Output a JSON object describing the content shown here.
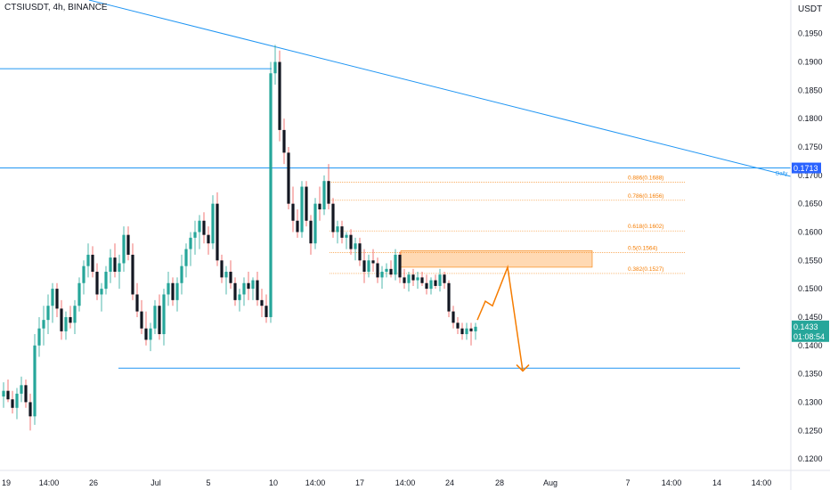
{
  "header": {
    "title": "CTSIUSDT, 4h, BINANCE",
    "currency": "USDT"
  },
  "colors": {
    "up": "#26a69a",
    "down": "#131722",
    "wick_down": "#ef5350",
    "trend": "#2196f3",
    "fib": "#f57c00",
    "zone_fill": "#ffcc99",
    "price_label_bg": "#26a69a",
    "daily_label_bg": "#2962ff"
  },
  "chart_data": {
    "type": "candlestick",
    "symbol": "CTSIUSDT",
    "interval": "4h",
    "exchange": "BINANCE",
    "ylim": [
      0.115,
      0.198
    ],
    "y_ticks": [
      "0.1950",
      "0.1900",
      "0.1850",
      "0.1800",
      "0.1750",
      "0.1700",
      "0.1650",
      "0.1600",
      "0.1550",
      "0.1500",
      "0.1450",
      "0.1400",
      "0.1350",
      "0.1300",
      "0.1250",
      "0.1200"
    ],
    "x_ticks": [
      "19",
      "14:00",
      "26",
      "Jul",
      "5",
      "10",
      "14:00",
      "17",
      "14:00",
      "24",
      "28",
      "Aug",
      "7",
      "14:00",
      "14",
      "14:00"
    ],
    "current_price": "0.1433",
    "countdown": "01:08:54",
    "daily_level": "0.1713",
    "daily_label": "Daily",
    "fib_levels": [
      {
        "label": "0.886(0.1688)",
        "value": 0.1688
      },
      {
        "label": "0.786(0.1656)",
        "value": 0.1656
      },
      {
        "label": "0.618(0.1602)",
        "value": 0.1602
      },
      {
        "label": "0.5(0.1564)",
        "value": 0.1564
      },
      {
        "label": "0.382(0.1527)",
        "value": 0.1527
      }
    ],
    "resistance_zone": [
      0.1538,
      0.1567
    ],
    "support_level": 0.136,
    "upper_level": 0.1888,
    "projection_path": [
      0.1445,
      0.1478,
      0.147,
      0.1538,
      0.1355
    ],
    "candles": [
      [
        0.131,
        0.1335,
        0.129,
        0.132
      ],
      [
        0.132,
        0.134,
        0.13,
        0.1305
      ],
      [
        0.1305,
        0.132,
        0.128,
        0.129
      ],
      [
        0.129,
        0.1325,
        0.127,
        0.1315
      ],
      [
        0.1315,
        0.1345,
        0.13,
        0.133
      ],
      [
        0.133,
        0.134,
        0.129,
        0.13
      ],
      [
        0.13,
        0.1315,
        0.125,
        0.1275
      ],
      [
        0.1275,
        0.142,
        0.126,
        0.14
      ],
      [
        0.14,
        0.145,
        0.138,
        0.143
      ],
      [
        0.143,
        0.147,
        0.14,
        0.1445
      ],
      [
        0.1445,
        0.149,
        0.142,
        0.147
      ],
      [
        0.147,
        0.151,
        0.144,
        0.15
      ],
      [
        0.15,
        0.151,
        0.145,
        0.1465
      ],
      [
        0.1465,
        0.148,
        0.141,
        0.1425
      ],
      [
        0.1425,
        0.146,
        0.141,
        0.145
      ],
      [
        0.145,
        0.147,
        0.143,
        0.144
      ],
      [
        0.144,
        0.148,
        0.142,
        0.147
      ],
      [
        0.147,
        0.152,
        0.146,
        0.151
      ],
      [
        0.151,
        0.155,
        0.149,
        0.154
      ],
      [
        0.154,
        0.158,
        0.152,
        0.156
      ],
      [
        0.156,
        0.1575,
        0.152,
        0.153
      ],
      [
        0.153,
        0.1545,
        0.148,
        0.149
      ],
      [
        0.149,
        0.151,
        0.146,
        0.15
      ],
      [
        0.15,
        0.154,
        0.149,
        0.153
      ],
      [
        0.153,
        0.157,
        0.151,
        0.1555
      ],
      [
        0.1555,
        0.158,
        0.152,
        0.153
      ],
      [
        0.153,
        0.156,
        0.15,
        0.1545
      ],
      [
        0.1545,
        0.161,
        0.153,
        0.1595
      ],
      [
        0.1595,
        0.161,
        0.155,
        0.156
      ],
      [
        0.156,
        0.158,
        0.148,
        0.149
      ],
      [
        0.149,
        0.151,
        0.145,
        0.146
      ],
      [
        0.146,
        0.148,
        0.142,
        0.143
      ],
      [
        0.143,
        0.146,
        0.14,
        0.141
      ],
      [
        0.141,
        0.144,
        0.139,
        0.143
      ],
      [
        0.143,
        0.148,
        0.142,
        0.147
      ],
      [
        0.147,
        0.149,
        0.141,
        0.142
      ],
      [
        0.142,
        0.15,
        0.14,
        0.149
      ],
      [
        0.149,
        0.153,
        0.147,
        0.151
      ],
      [
        0.151,
        0.152,
        0.147,
        0.148
      ],
      [
        0.148,
        0.152,
        0.146,
        0.151
      ],
      [
        0.151,
        0.156,
        0.149,
        0.154
      ],
      [
        0.154,
        0.158,
        0.152,
        0.157
      ],
      [
        0.157,
        0.16,
        0.154,
        0.159
      ],
      [
        0.159,
        0.162,
        0.156,
        0.16
      ],
      [
        0.16,
        0.163,
        0.157,
        0.162
      ],
      [
        0.162,
        0.1635,
        0.158,
        0.1595
      ],
      [
        0.1595,
        0.161,
        0.156,
        0.158
      ],
      [
        0.158,
        0.1665,
        0.157,
        0.165
      ],
      [
        0.165,
        0.167,
        0.154,
        0.155
      ],
      [
        0.155,
        0.156,
        0.151,
        0.152
      ],
      [
        0.152,
        0.154,
        0.149,
        0.153
      ],
      [
        0.153,
        0.155,
        0.15,
        0.151
      ],
      [
        0.151,
        0.152,
        0.147,
        0.148
      ],
      [
        0.148,
        0.15,
        0.146,
        0.149
      ],
      [
        0.149,
        0.152,
        0.147,
        0.151
      ],
      [
        0.151,
        0.153,
        0.148,
        0.15
      ],
      [
        0.15,
        0.152,
        0.148,
        0.1515
      ],
      [
        0.1515,
        0.153,
        0.147,
        0.148
      ],
      [
        0.148,
        0.15,
        0.145,
        0.147
      ],
      [
        0.147,
        0.149,
        0.144,
        0.145
      ],
      [
        0.145,
        0.19,
        0.144,
        0.188
      ],
      [
        0.188,
        0.193,
        0.186,
        0.19
      ],
      [
        0.19,
        0.192,
        0.176,
        0.178
      ],
      [
        0.178,
        0.18,
        0.172,
        0.174
      ],
      [
        0.174,
        0.175,
        0.164,
        0.165
      ],
      [
        0.165,
        0.168,
        0.16,
        0.162
      ],
      [
        0.162,
        0.164,
        0.159,
        0.16
      ],
      [
        0.16,
        0.169,
        0.159,
        0.168
      ],
      [
        0.168,
        0.169,
        0.161,
        0.162
      ],
      [
        0.162,
        0.163,
        0.156,
        0.158
      ],
      [
        0.158,
        0.166,
        0.157,
        0.165
      ],
      [
        0.165,
        0.168,
        0.162,
        0.164
      ],
      [
        0.164,
        0.17,
        0.163,
        0.169
      ],
      [
        0.169,
        0.172,
        0.164,
        0.165
      ],
      [
        0.165,
        0.166,
        0.159,
        0.16
      ],
      [
        0.16,
        0.162,
        0.158,
        0.161
      ],
      [
        0.161,
        0.162,
        0.158,
        0.159
      ],
      [
        0.159,
        0.16,
        0.157,
        0.1595
      ],
      [
        0.1595,
        0.1605,
        0.156,
        0.157
      ],
      [
        0.157,
        0.159,
        0.155,
        0.158
      ],
      [
        0.158,
        0.159,
        0.154,
        0.155
      ],
      [
        0.155,
        0.157,
        0.151,
        0.153
      ],
      [
        0.153,
        0.156,
        0.152,
        0.155
      ],
      [
        0.155,
        0.157,
        0.153,
        0.1545
      ],
      [
        0.1545,
        0.1555,
        0.151,
        0.152
      ],
      [
        0.152,
        0.154,
        0.15,
        0.153
      ],
      [
        0.153,
        0.1545,
        0.152,
        0.1535
      ],
      [
        0.1535,
        0.155,
        0.152,
        0.1525
      ],
      [
        0.1525,
        0.157,
        0.1515,
        0.156
      ],
      [
        0.156,
        0.1565,
        0.151,
        0.152
      ],
      [
        0.152,
        0.1535,
        0.15,
        0.151
      ],
      [
        0.151,
        0.153,
        0.1495,
        0.1525
      ],
      [
        0.1525,
        0.1535,
        0.1505,
        0.1515
      ],
      [
        0.1515,
        0.153,
        0.15,
        0.152
      ],
      [
        0.152,
        0.153,
        0.1505,
        0.151
      ],
      [
        0.151,
        0.1525,
        0.149,
        0.15
      ],
      [
        0.15,
        0.152,
        0.149,
        0.1515
      ],
      [
        0.1515,
        0.1525,
        0.15,
        0.1505
      ],
      [
        0.1505,
        0.1535,
        0.1495,
        0.1525
      ],
      [
        0.1525,
        0.153,
        0.15,
        0.151
      ],
      [
        0.151,
        0.1515,
        0.145,
        0.146
      ],
      [
        0.146,
        0.147,
        0.143,
        0.144
      ],
      [
        0.144,
        0.145,
        0.142,
        0.143
      ],
      [
        0.143,
        0.144,
        0.141,
        0.142
      ],
      [
        0.142,
        0.144,
        0.141,
        0.143
      ],
      [
        0.143,
        0.144,
        0.14,
        0.1425
      ],
      [
        0.1425,
        0.144,
        0.141,
        0.1433
      ]
    ]
  }
}
